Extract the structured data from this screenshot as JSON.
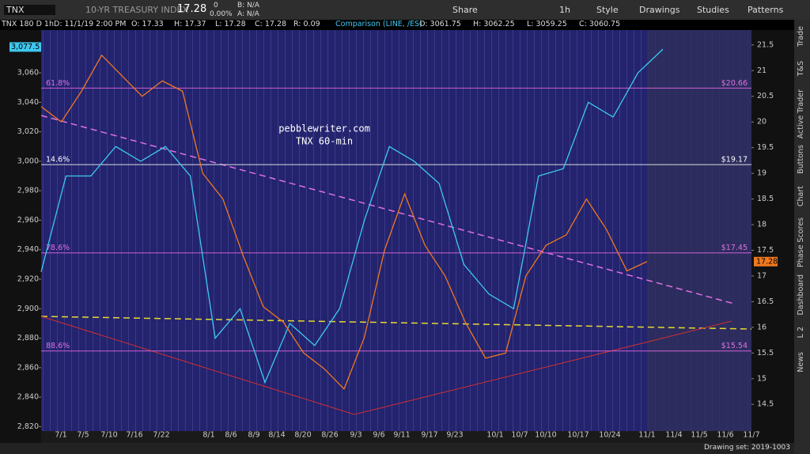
{
  "header": {
    "symbol": "TNX",
    "description": "10-YR TREASURY INDEX",
    "last": "17.28",
    "change": "0",
    "change_pct": "0.00%",
    "bid": "B: N/A",
    "ask": "A: N/A",
    "buttons": [
      "Share",
      "1h",
      "Style",
      "Drawings",
      "Studies",
      "Patterns"
    ]
  },
  "info_bar": {
    "title": "TNX 180 D 1h",
    "date": "D: 11/1/19 2:00 PM",
    "open": "O: 17.33",
    "high": "H: 17.37",
    "low": "L: 17.28",
    "close": "C: 17.28",
    "range": "R: 0.09",
    "comparison": "Comparison (LINE, /ES)",
    "c_open": "O: 3061.75",
    "c_high": "H: 3062.25",
    "c_low": "L: 3059.25",
    "c_close": "C: 3060.75"
  },
  "chart": {
    "annotation": [
      "pebblewriter.com",
      "TNX 60-min"
    ],
    "left_ylim": [
      2817,
      3089
    ],
    "left_yticks": [
      {
        "value": 3060,
        "label": "3,060"
      },
      {
        "value": 3040,
        "label": "3,040"
      },
      {
        "value": 3020,
        "label": "3,020"
      },
      {
        "value": 3000,
        "label": "3,000"
      },
      {
        "value": 2980,
        "label": "2,980"
      },
      {
        "value": 2960,
        "label": "2,960"
      },
      {
        "value": 2940,
        "label": "2,940"
      },
      {
        "value": 2920,
        "label": "2,920"
      },
      {
        "value": 2900,
        "label": "2,900"
      },
      {
        "value": 2880,
        "label": "2,880"
      },
      {
        "value": 2860,
        "label": "2,860"
      },
      {
        "value": 2840,
        "label": "2,840"
      },
      {
        "value": 2820,
        "label": "2,820"
      }
    ],
    "left_current": {
      "value": 3077.5,
      "label": "3,077.5"
    },
    "right_ylim": [
      13.98,
      21.79
    ],
    "right_yticks": [
      21.5,
      21,
      20.5,
      20,
      19.5,
      19,
      18.5,
      18,
      17.5,
      17,
      16.5,
      16,
      15.5,
      15,
      14.5
    ],
    "right_current": 17.28,
    "dates": [
      "7/1",
      "7/5",
      "7/10",
      "7/16",
      "7/22",
      "8/1",
      "8/6",
      "8/9",
      "8/14",
      "8/20",
      "8/26",
      "9/3",
      "9/6",
      "9/11",
      "9/17",
      "9/23",
      "10/1",
      "10/7",
      "10/10",
      "10/17",
      "10/24",
      "11/1",
      "11/4",
      "11/5",
      "11/6",
      "11/7"
    ],
    "fib": [
      {
        "pct": "61.8%",
        "value": 20.66,
        "label": "$20.66"
      },
      {
        "pct": "14.6%",
        "value": 19.17,
        "label": "$19.17"
      },
      {
        "pct": "78.6%",
        "value": 17.45,
        "label": "$17.45"
      },
      {
        "pct": "88.6%",
        "value": 15.54,
        "label": "$15.54"
      }
    ],
    "price": {
      "name": "TNX",
      "color": "#f07820",
      "values": [
        20.3,
        20.0,
        20.6,
        21.3,
        20.9,
        20.5,
        20.8,
        20.6,
        19.0,
        18.5,
        17.4,
        16.4,
        16.1,
        15.5,
        15.2,
        14.8,
        15.8,
        17.5,
        18.6,
        17.6,
        17.0,
        16.1,
        15.4,
        15.5,
        17.0,
        17.6,
        17.8,
        18.5,
        17.9,
        17.1,
        17.28
      ]
    },
    "comparison": {
      "name": "/ES",
      "color": "#3fc8f0",
      "values": [
        2925,
        2990,
        2990,
        3010,
        3000,
        3010,
        2990,
        2880,
        2900,
        2850,
        2890,
        2875,
        2900,
        2960,
        3010,
        3000,
        2985,
        2930,
        2910,
        2900,
        2990,
        2995,
        3040,
        3030,
        3060,
        3076
      ]
    }
  },
  "sidebar": [
    "Trade",
    "T&S",
    "Active Trader",
    "Buttons",
    "Chart",
    "Phase Scores",
    "Dashboard",
    "L 2",
    "News"
  ],
  "status": "Drawing set: 2019-1003"
}
